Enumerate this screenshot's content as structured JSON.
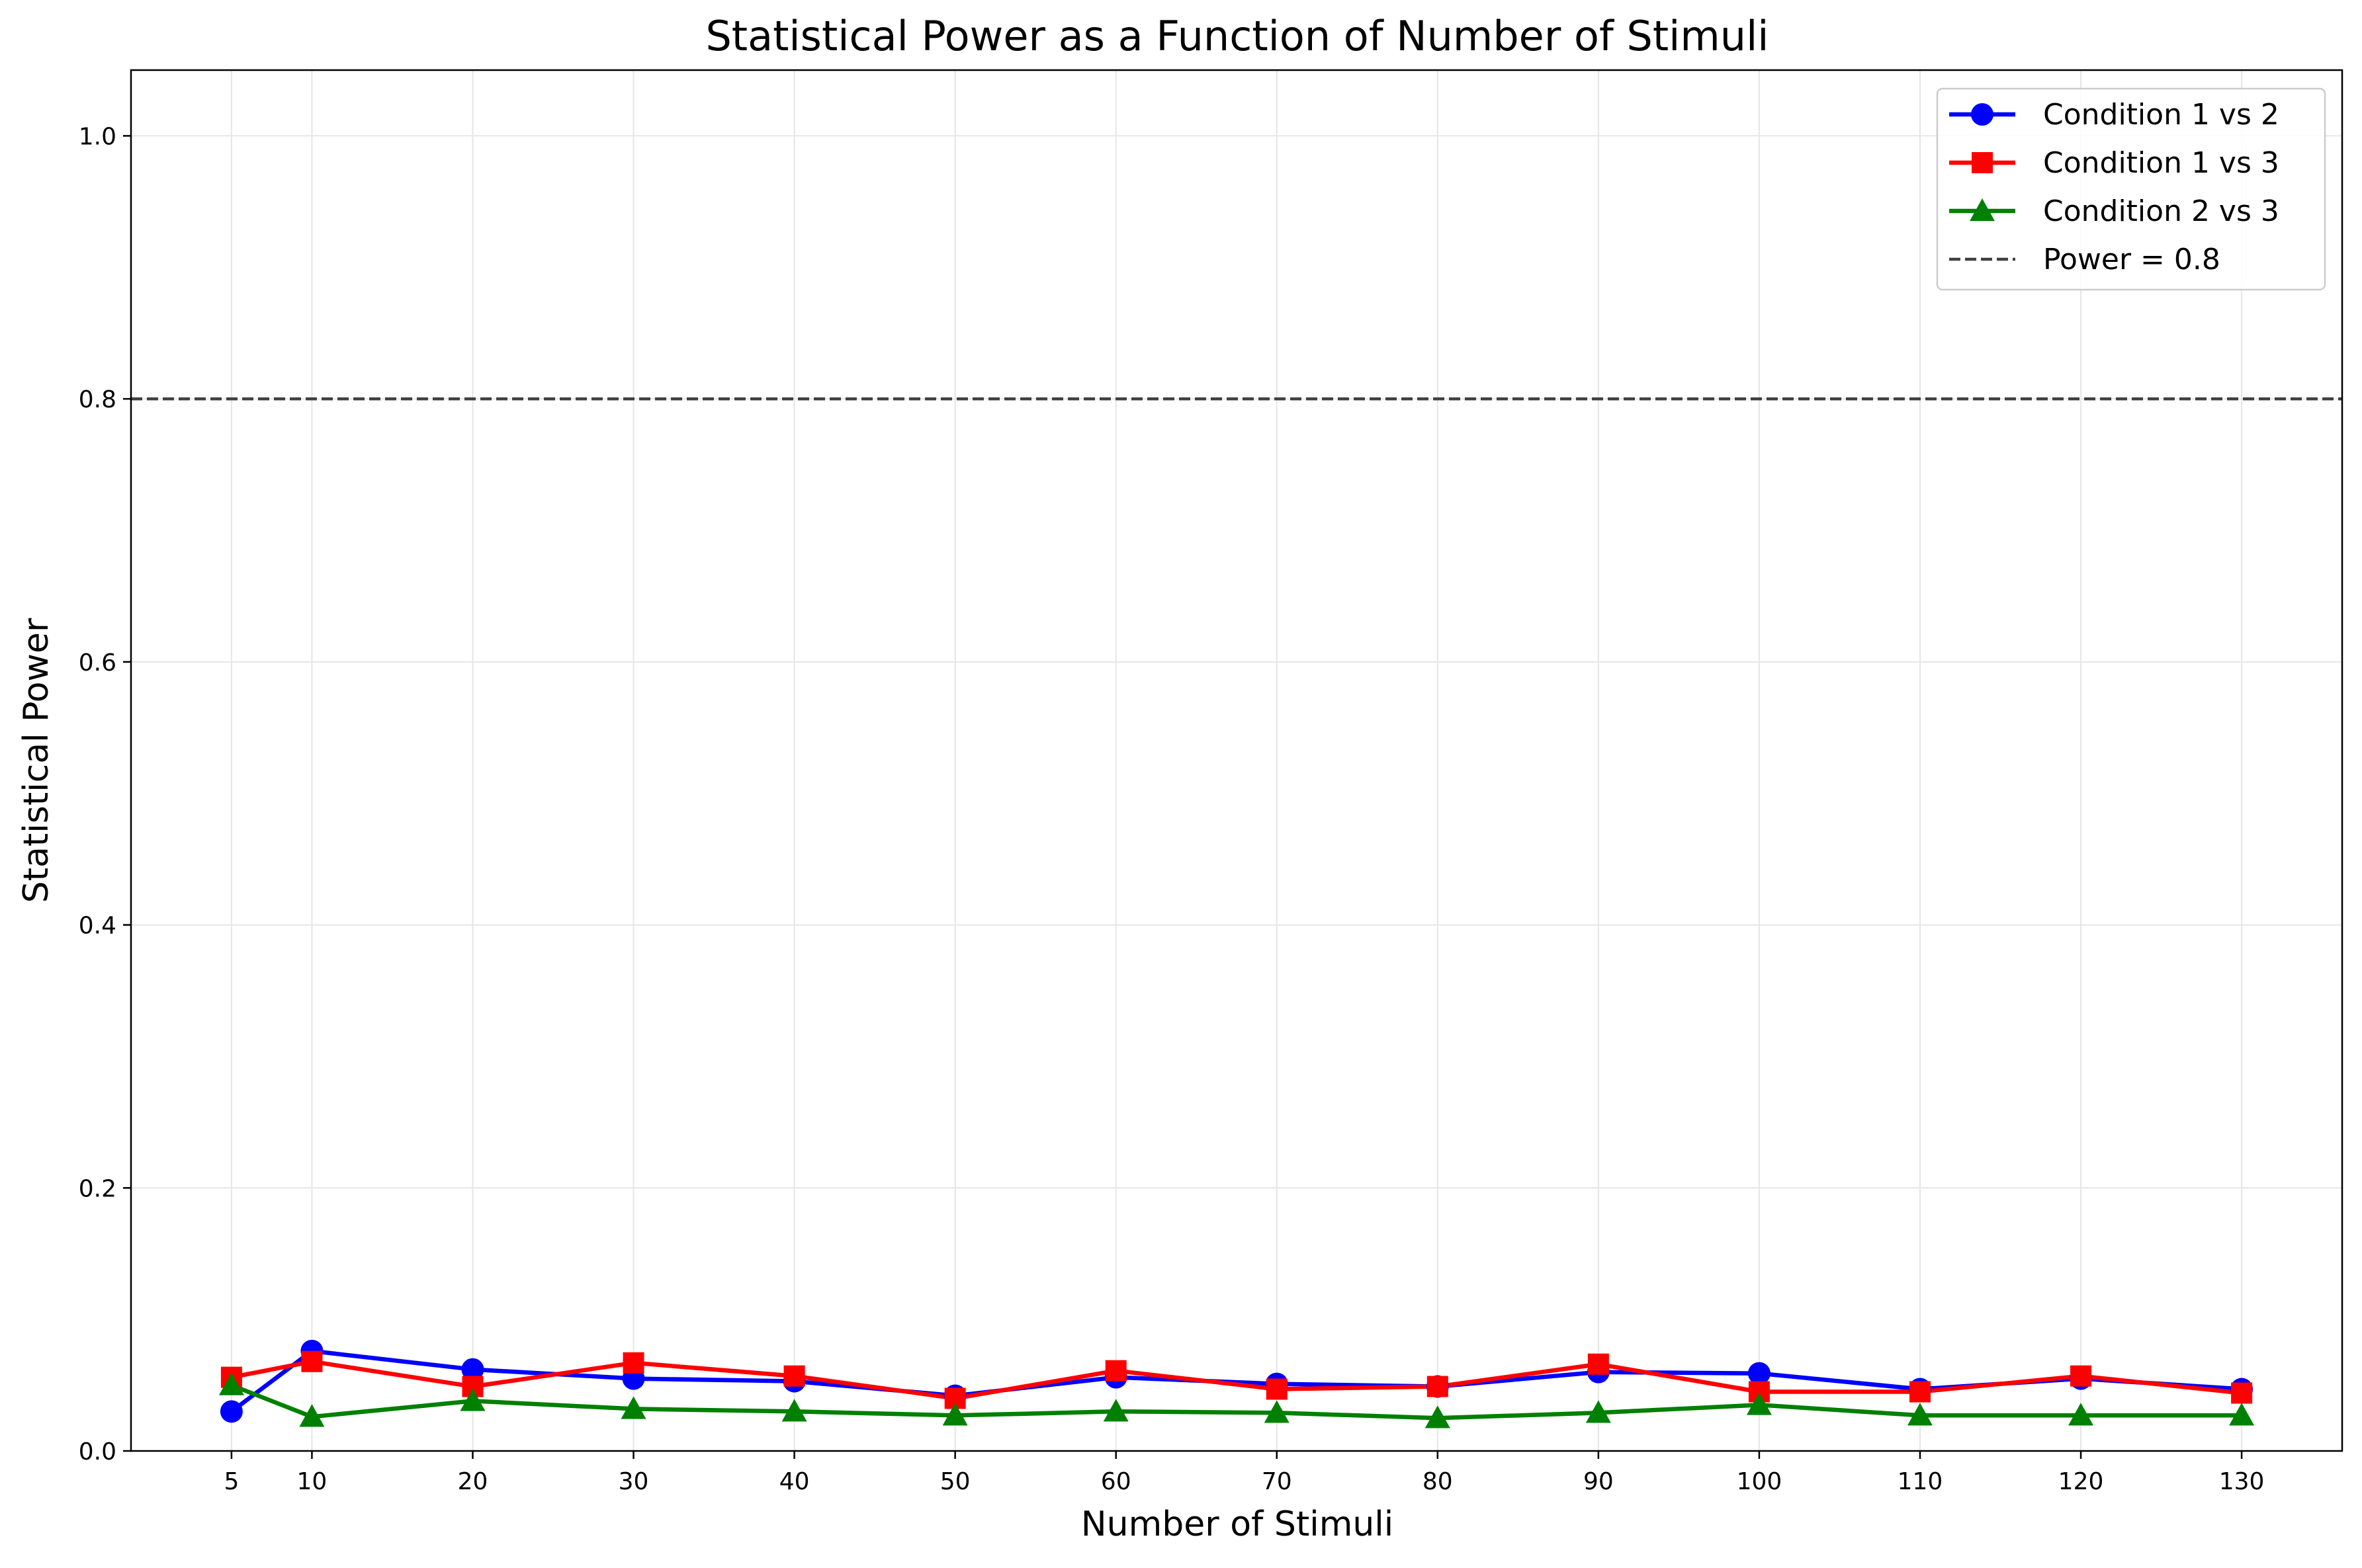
{
  "chart_data": {
    "type": "line",
    "title": "Statistical Power as a Function of Number of Stimuli",
    "xlabel": "Number of Stimuli",
    "ylabel": "Statistical Power",
    "x": [
      5,
      10,
      20,
      30,
      40,
      50,
      60,
      70,
      80,
      90,
      100,
      110,
      120,
      130
    ],
    "xticks": [
      "5",
      "10",
      "20",
      "30",
      "40",
      "50",
      "60",
      "70",
      "80",
      "90",
      "100",
      "110",
      "120",
      "130"
    ],
    "yticks": [
      "0.0",
      "0.2",
      "0.4",
      "0.6",
      "0.8",
      "1.0"
    ],
    "xlim": [
      -1.25,
      136.25
    ],
    "ylim": [
      0,
      1.05
    ],
    "grid": true,
    "legend_position": "top-right",
    "series": [
      {
        "name": "Condition 1 vs 2",
        "color": "#0000ff",
        "marker": "circle",
        "values": [
          0.03,
          0.076,
          0.062,
          0.055,
          0.053,
          0.042,
          0.056,
          0.051,
          0.049,
          0.06,
          0.059,
          0.047,
          0.055,
          0.047
        ]
      },
      {
        "name": "Condition 1 vs 3",
        "color": "#ff0000",
        "marker": "square",
        "values": [
          0.056,
          0.068,
          0.049,
          0.067,
          0.057,
          0.04,
          0.061,
          0.047,
          0.049,
          0.066,
          0.045,
          0.045,
          0.057,
          0.044
        ]
      },
      {
        "name": "Condition 2 vs 3",
        "color": "#008000",
        "marker": "triangle",
        "values": [
          0.05,
          0.026,
          0.038,
          0.032,
          0.03,
          0.027,
          0.03,
          0.029,
          0.025,
          0.029,
          0.035,
          0.027,
          0.027,
          0.027
        ]
      }
    ],
    "reference_line": {
      "label": "Power = 0.8",
      "y": 0.8,
      "color": "#404040",
      "style": "dashed"
    }
  }
}
